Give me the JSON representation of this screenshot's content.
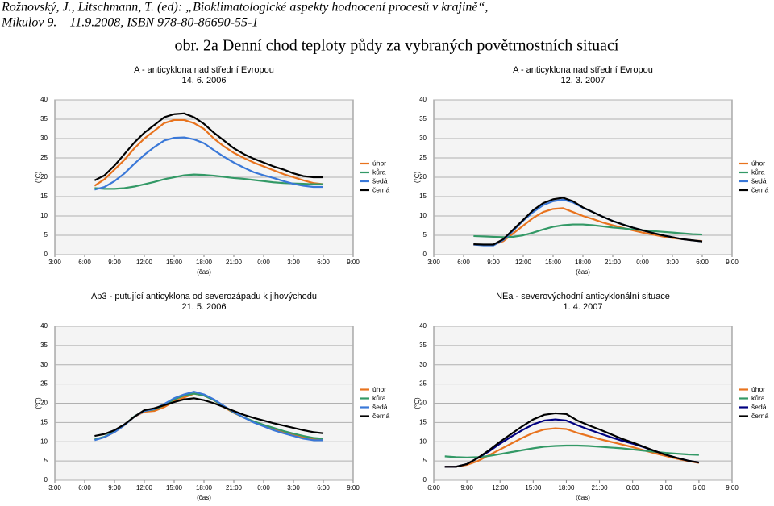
{
  "header": {
    "citation_line1": "Rožnovský, J., Litschmann, T. (ed): „Bioklimatologické aspekty hodnocení procesů v krajině“,",
    "citation_line2": "Mikulov 9. – 11.9.2008, ISBN 978-80-86690-55-1",
    "figure_title": "obr. 2a Denní chod teploty půdy za vybraných povětrnostních situací"
  },
  "chart_data": [
    {
      "type": "line",
      "title": "A - anticyklona nad střední Evropou",
      "subtitle": "14. 6. 2006",
      "x_label": "(čas)",
      "y_label": "(°C)",
      "x": [
        7,
        8,
        9,
        10,
        11,
        12,
        13,
        14,
        15,
        16,
        17,
        18,
        19,
        20,
        21,
        22,
        23,
        24,
        25,
        26,
        27,
        28,
        29,
        30
      ],
      "xlim": [
        3,
        33
      ],
      "xticks": [
        {
          "value": 3,
          "label": "3:00"
        },
        {
          "value": 6,
          "label": "6:00"
        },
        {
          "value": 9,
          "label": "9:00"
        },
        {
          "value": 12,
          "label": "12:00"
        },
        {
          "value": 15,
          "label": "15:00"
        },
        {
          "value": 18,
          "label": "18:00"
        },
        {
          "value": 21,
          "label": "21:00"
        },
        {
          "value": 24,
          "label": "0:00"
        },
        {
          "value": 27,
          "label": "3:00"
        },
        {
          "value": 30,
          "label": "6:00"
        },
        {
          "value": 33,
          "label": "9:00"
        }
      ],
      "ylim": [
        0,
        40
      ],
      "yticks": [
        0,
        5,
        10,
        15,
        20,
        25,
        30,
        35,
        40
      ],
      "grid": true,
      "legend": "right",
      "series": [
        {
          "name": "úhor",
          "color": "#e8731e",
          "values": [
            17.8,
            19.5,
            22,
            24.5,
            27.5,
            30,
            32,
            34,
            34.8,
            34.8,
            34,
            32.5,
            30,
            28,
            26.3,
            25,
            23.8,
            22.8,
            21.8,
            20.8,
            20,
            19.2,
            18.5,
            18.2
          ]
        },
        {
          "name": "kůra",
          "color": "#339966",
          "values": [
            17.2,
            17,
            17,
            17.2,
            17.6,
            18.2,
            18.8,
            19.5,
            20,
            20.5,
            20.7,
            20.6,
            20.4,
            20.1,
            19.8,
            19.6,
            19.3,
            19,
            18.7,
            18.5,
            18.4,
            18.3,
            18.2,
            18.2
          ]
        },
        {
          "name": "šedá",
          "color": "#3a78d8",
          "values": [
            16.8,
            17.5,
            19,
            21,
            23.5,
            25.8,
            27.8,
            29.5,
            30.2,
            30.3,
            29.8,
            28.8,
            27,
            25.3,
            23.8,
            22.5,
            21.3,
            20.5,
            19.8,
            19,
            18.3,
            17.8,
            17.5,
            17.5
          ]
        },
        {
          "name": "černá",
          "color": "#000000",
          "values": [
            19.2,
            20.5,
            23,
            26,
            29,
            31.5,
            33.5,
            35.5,
            36.3,
            36.5,
            35.5,
            33.8,
            31.5,
            29.5,
            27.5,
            26,
            24.8,
            23.8,
            22.8,
            22,
            21,
            20.3,
            20,
            20
          ]
        }
      ]
    },
    {
      "type": "line",
      "title": "A - anticyklona nad střední Evropou",
      "subtitle": "12. 3. 2007",
      "x_label": "(čas)",
      "y_label": "(°C)",
      "x": [
        7,
        8,
        9,
        10,
        11,
        12,
        13,
        14,
        15,
        16,
        17,
        18,
        19,
        20,
        21,
        22,
        23,
        24,
        25,
        26,
        27,
        28,
        29,
        30
      ],
      "xlim": [
        3,
        33
      ],
      "xticks": [
        {
          "value": 3,
          "label": "3:00"
        },
        {
          "value": 6,
          "label": "6:00"
        },
        {
          "value": 9,
          "label": "9:00"
        },
        {
          "value": 12,
          "label": "12:00"
        },
        {
          "value": 15,
          "label": "15:00"
        },
        {
          "value": 18,
          "label": "18:00"
        },
        {
          "value": 21,
          "label": "21:00"
        },
        {
          "value": 24,
          "label": "0:00"
        },
        {
          "value": 27,
          "label": "3:00"
        },
        {
          "value": 30,
          "label": "6:00"
        },
        {
          "value": 33,
          "label": "9:00"
        }
      ],
      "ylim": [
        0,
        40
      ],
      "yticks": [
        0,
        5,
        10,
        15,
        20,
        25,
        30,
        35,
        40
      ],
      "grid": true,
      "legend": "right",
      "series": [
        {
          "name": "úhor",
          "color": "#e8731e",
          "values": [
            2.6,
            2.5,
            2.5,
            3.5,
            5.5,
            7.5,
            9.5,
            11,
            11.8,
            12,
            11,
            10,
            9.2,
            8.3,
            7.6,
            6.9,
            6.3,
            5.7,
            5.2,
            4.7,
            4.3,
            4,
            3.7,
            3.5
          ]
        },
        {
          "name": "kůra",
          "color": "#339966",
          "values": [
            4.8,
            4.7,
            4.6,
            4.5,
            4.6,
            5,
            5.7,
            6.5,
            7.2,
            7.6,
            7.8,
            7.8,
            7.6,
            7.3,
            7,
            6.8,
            6.5,
            6.3,
            6.1,
            5.9,
            5.7,
            5.5,
            5.3,
            5.2
          ]
        },
        {
          "name": "šedá",
          "color": "#3a78d8",
          "values": [
            2.6,
            2.4,
            2.4,
            3.8,
            6.2,
            8.8,
            11,
            12.8,
            13.8,
            14.2,
            13.5,
            12.1,
            11,
            9.8,
            8.7,
            7.8,
            7,
            6.3,
            5.6,
            5,
            4.5,
            4,
            3.7,
            3.4
          ]
        },
        {
          "name": "černá",
          "color": "#000000",
          "values": [
            2.7,
            2.6,
            2.6,
            4,
            6.5,
            9,
            11.5,
            13.3,
            14.3,
            14.7,
            13.8,
            12.2,
            11,
            9.8,
            8.7,
            7.8,
            7,
            6.3,
            5.6,
            5,
            4.5,
            4,
            3.7,
            3.4
          ]
        }
      ]
    },
    {
      "type": "line",
      "title": "Ap3 - putující anticyklona od severozápadu k jihovýchodu",
      "subtitle": "21. 5. 2006",
      "x_label": "(čas)",
      "y_label": "(°C)",
      "x": [
        7,
        8,
        9,
        10,
        11,
        12,
        13,
        14,
        15,
        16,
        17,
        18,
        19,
        20,
        21,
        22,
        23,
        24,
        25,
        26,
        27,
        28,
        29,
        30
      ],
      "xlim": [
        3,
        33
      ],
      "xticks": [
        {
          "value": 3,
          "label": "3:00"
        },
        {
          "value": 6,
          "label": "6:00"
        },
        {
          "value": 9,
          "label": "9:00"
        },
        {
          "value": 12,
          "label": "12:00"
        },
        {
          "value": 15,
          "label": "15:00"
        },
        {
          "value": 18,
          "label": "18:00"
        },
        {
          "value": 21,
          "label": "21:00"
        },
        {
          "value": 24,
          "label": "0:00"
        },
        {
          "value": 27,
          "label": "3:00"
        },
        {
          "value": 30,
          "label": "6:00"
        },
        {
          "value": 33,
          "label": "9:00"
        }
      ],
      "ylim": [
        0,
        40
      ],
      "yticks": [
        0,
        5,
        10,
        15,
        20,
        25,
        30,
        35,
        40
      ],
      "grid": true,
      "legend": "right",
      "series": [
        {
          "name": "úhor",
          "color": "#e8731e",
          "values": [
            10.5,
            11.2,
            12.5,
            14.3,
            16.5,
            17.8,
            18,
            19,
            20.5,
            21.5,
            22.5,
            22,
            20.8,
            19,
            17.5,
            16.3,
            15.2,
            14.2,
            13.3,
            12.5,
            11.7,
            11.1,
            10.7,
            10.6
          ]
        },
        {
          "name": "kůra",
          "color": "#339966",
          "values": [
            10.6,
            11.3,
            12.7,
            14.4,
            16.6,
            18,
            18.4,
            19.5,
            21,
            22,
            22.5,
            22,
            20.8,
            19.2,
            17.6,
            16.3,
            15.3,
            14.4,
            13.6,
            12.8,
            12.1,
            11.5,
            11,
            10.8
          ]
        },
        {
          "name": "šedá",
          "color": "#3a78d8",
          "values": [
            10.4,
            11.2,
            12.5,
            14.3,
            16.5,
            18,
            18.5,
            19.8,
            21.3,
            22.3,
            23,
            22.3,
            21,
            19.3,
            17.7,
            16.3,
            15,
            14,
            13,
            12.2,
            11.5,
            10.8,
            10.4,
            10.4
          ]
        },
        {
          "name": "černá",
          "color": "#000000",
          "values": [
            11.5,
            12,
            13,
            14.5,
            16.5,
            18.2,
            18.7,
            19.5,
            20.3,
            21,
            21.3,
            20.8,
            20,
            19,
            18,
            17,
            16.2,
            15.5,
            14.8,
            14.2,
            13.6,
            13,
            12.5,
            12.2
          ]
        }
      ]
    },
    {
      "type": "line",
      "title": "NEa - severovýchodní anticyklonální situace",
      "subtitle": "1. 4. 2007",
      "x_label": "(čas)",
      "y_label": "(°C)",
      "x": [
        7,
        8,
        9,
        10,
        11,
        12,
        13,
        14,
        15,
        16,
        17,
        18,
        19,
        20,
        21,
        22,
        23,
        24,
        25,
        26,
        27,
        28,
        29,
        30
      ],
      "xlim": [
        6,
        33
      ],
      "xticks": [
        {
          "value": 6,
          "label": "6:00"
        },
        {
          "value": 9,
          "label": "9:00"
        },
        {
          "value": 12,
          "label": "12:00"
        },
        {
          "value": 15,
          "label": "15:00"
        },
        {
          "value": 18,
          "label": "18:00"
        },
        {
          "value": 21,
          "label": "21:00"
        },
        {
          "value": 24,
          "label": "0:00"
        },
        {
          "value": 27,
          "label": "3:00"
        },
        {
          "value": 30,
          "label": "6:00"
        },
        {
          "value": 33,
          "label": "9:00"
        }
      ],
      "ylim": [
        0,
        40
      ],
      "yticks": [
        0,
        5,
        10,
        15,
        20,
        25,
        30,
        35,
        40
      ],
      "grid": true,
      "legend": "right",
      "series": [
        {
          "name": "úhor",
          "color": "#e8731e",
          "values": [
            3.5,
            3.5,
            4,
            5,
            6.5,
            8,
            9.5,
            11,
            12.3,
            13.2,
            13.5,
            13.3,
            12.3,
            11.5,
            10.7,
            10,
            9.3,
            8.6,
            7.8,
            7,
            6.3,
            5.6,
            5,
            4.5
          ]
        },
        {
          "name": "kůra",
          "color": "#339966",
          "values": [
            6.2,
            6,
            5.9,
            6,
            6.3,
            6.8,
            7.3,
            7.8,
            8.3,
            8.7,
            8.9,
            9,
            9,
            8.9,
            8.7,
            8.5,
            8.3,
            8,
            7.7,
            7.4,
            7.1,
            6.9,
            6.7,
            6.6
          ]
        },
        {
          "name": "šedá",
          "color": "#000080",
          "values": [
            3.5,
            3.5,
            4.2,
            5.8,
            7.5,
            9.5,
            11.3,
            13,
            14.5,
            15.5,
            15.8,
            15.5,
            14.3,
            13.2,
            12.2,
            11.2,
            10.3,
            9.5,
            8.6,
            7.6,
            6.6,
            5.8,
            5.1,
            4.6
          ]
        },
        {
          "name": "černá",
          "color": "#000000",
          "values": [
            3.5,
            3.5,
            4.2,
            5.8,
            7.8,
            10,
            12,
            14,
            15.8,
            17,
            17.4,
            17.2,
            15.5,
            14.3,
            13.2,
            12,
            10.8,
            9.8,
            8.7,
            7.6,
            6.6,
            5.8,
            5.1,
            4.6
          ]
        }
      ]
    }
  ]
}
